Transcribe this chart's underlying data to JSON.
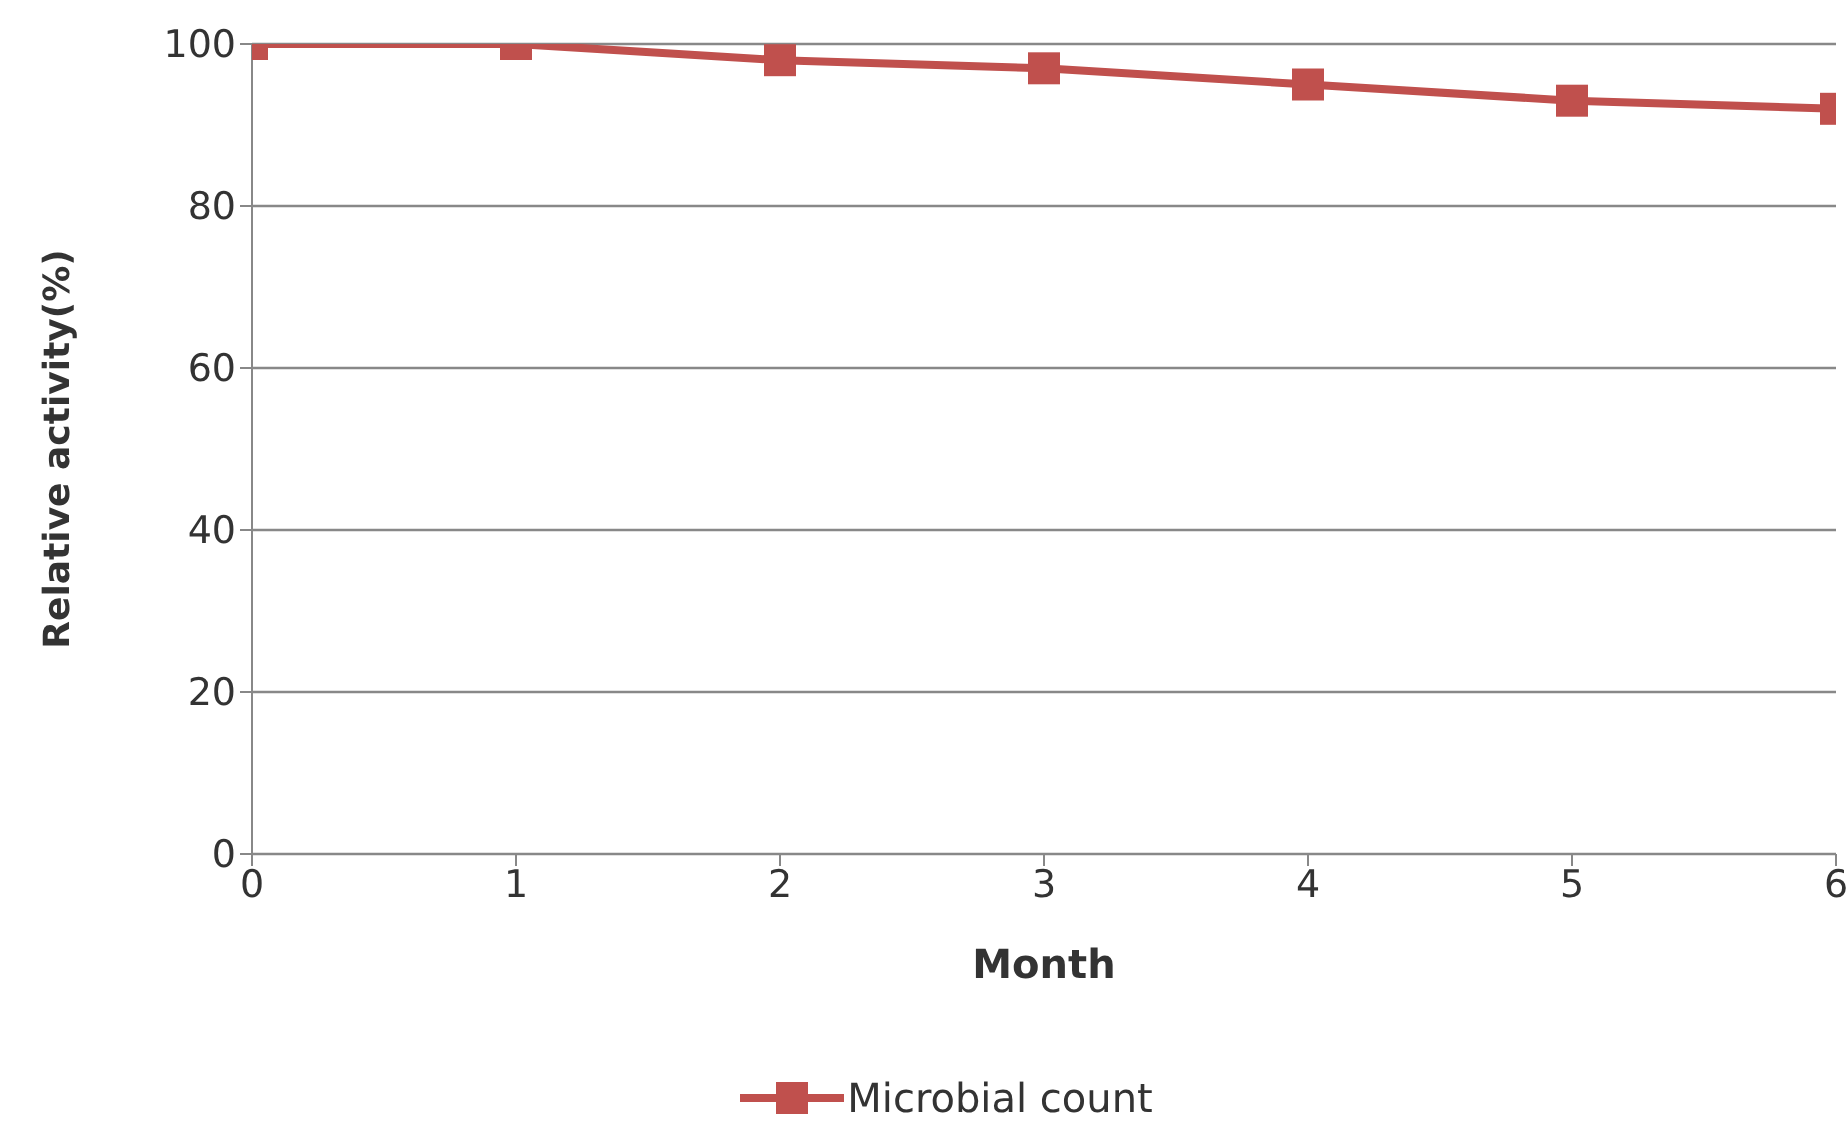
{
  "chart_data": {
    "type": "line",
    "xlabel": "Month",
    "ylabel": "Relative activity(%)",
    "x": [
      0,
      1,
      2,
      3,
      4,
      5,
      6
    ],
    "series": [
      {
        "name": "Microbial count",
        "color": "#c0504d",
        "values": [
          100,
          100,
          98,
          97,
          95,
          93,
          92
        ]
      }
    ],
    "xlim": [
      0,
      6
    ],
    "xticks": [
      0,
      1,
      2,
      3,
      4,
      5,
      6
    ],
    "ylim": [
      0,
      100
    ],
    "yticks": [
      0,
      20,
      40,
      60,
      80,
      100
    ],
    "grid": "y",
    "legend": "bottom",
    "marker": "square",
    "line_style": "solid"
  }
}
